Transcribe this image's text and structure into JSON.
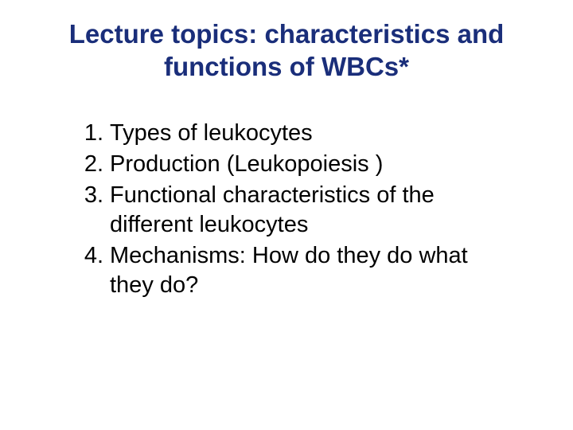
{
  "title_color": "#1a2e7a",
  "body_color": "#000000",
  "background_color": "#ffffff",
  "title_fontsize": 33,
  "body_fontsize": 29,
  "title": "Lecture topics: characteristics and functions of WBCs*",
  "items": [
    {
      "num": "1.",
      "text": "Types of leukocytes"
    },
    {
      "num": "2.",
      "text": "Production (Leukopoiesis )"
    },
    {
      "num": "3.",
      "text": "Functional characteristics of the different leukocytes"
    },
    {
      "num": "4.",
      "text": "Mechanisms: How do they do what they do?"
    }
  ]
}
